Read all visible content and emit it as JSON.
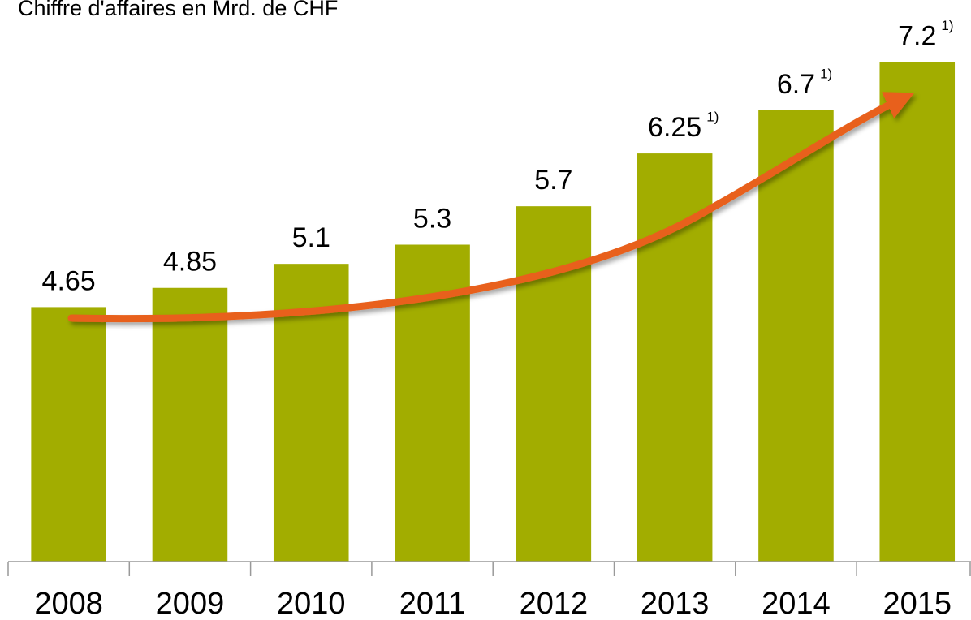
{
  "chart_data": {
    "type": "bar",
    "title": "Chiffre d'affaires en Mrd. de CHF",
    "categories": [
      "2008",
      "2009",
      "2010",
      "2011",
      "2012",
      "2013",
      "2014",
      "2015"
    ],
    "values": [
      4.65,
      4.85,
      5.1,
      5.3,
      5.7,
      6.25,
      6.7,
      7.2
    ],
    "value_notes": [
      null,
      null,
      null,
      null,
      null,
      "1)",
      "1)",
      "1)"
    ],
    "color": "#a2ad00",
    "ylim": [
      2,
      8
    ]
  }
}
